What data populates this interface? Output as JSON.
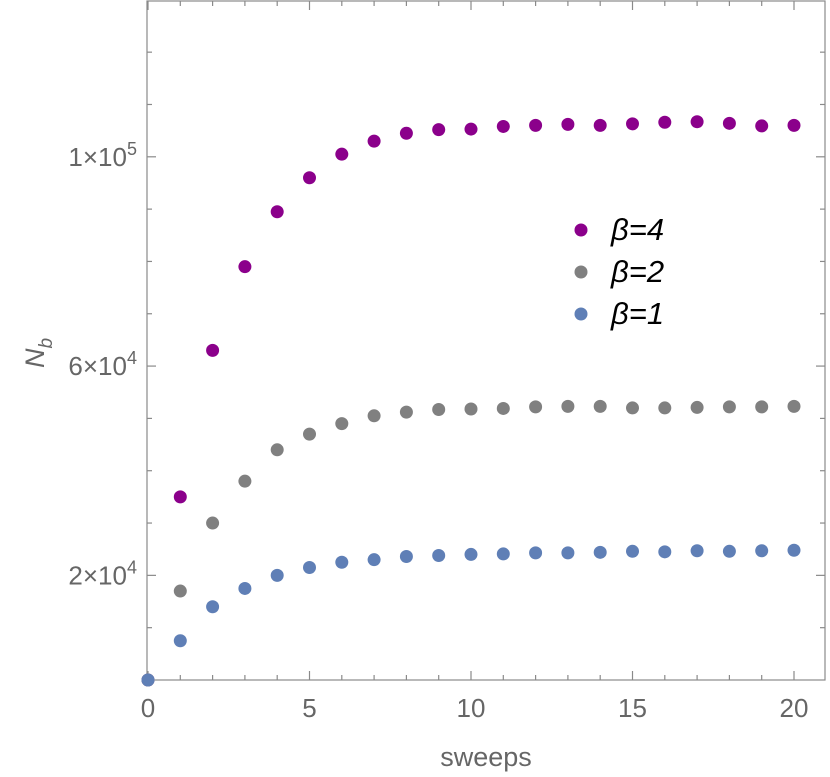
{
  "chart_data": {
    "type": "scatter",
    "xlabel": "sweeps",
    "ylabel": "N_b",
    "ylabel_main": "N",
    "ylabel_sub": "b",
    "xlim": [
      0,
      20.8
    ],
    "ylim": [
      0,
      130000
    ],
    "x_ticks": [
      0,
      5,
      10,
      15,
      20
    ],
    "x_tick_labels": [
      "0",
      "5",
      "10",
      "15",
      "20"
    ],
    "y_ticks": [
      20000,
      60000,
      100000
    ],
    "y_tick_labels": [
      {
        "mantissa": "2×10",
        "exp": "4"
      },
      {
        "mantissa": "6×10",
        "exp": "4"
      },
      {
        "mantissa": "1×10",
        "exp": "5"
      }
    ],
    "grid": false,
    "legend_position": "center-right",
    "x": [
      0,
      1,
      2,
      3,
      4,
      5,
      6,
      7,
      8,
      9,
      10,
      11,
      12,
      13,
      14,
      15,
      16,
      17,
      18,
      19,
      20
    ],
    "series": [
      {
        "name": "β=4",
        "color": "#8b008b",
        "values": [
          0,
          35000,
          63000,
          79000,
          89500,
          96000,
          100500,
          103000,
          104500,
          105200,
          105300,
          105800,
          106000,
          106200,
          106000,
          106300,
          106600,
          106700,
          106400,
          105900,
          106000
        ]
      },
      {
        "name": "β=2",
        "color": "#808080",
        "values": [
          0,
          17000,
          30000,
          38000,
          44000,
          47000,
          49000,
          50500,
          51200,
          51700,
          51800,
          51900,
          52200,
          52300,
          52300,
          52000,
          52000,
          52100,
          52200,
          52200,
          52300
        ]
      },
      {
        "name": "β=1",
        "color": "#5f7fb6",
        "values": [
          0,
          7500,
          14000,
          17500,
          20000,
          21500,
          22500,
          23000,
          23600,
          23800,
          24000,
          24100,
          24300,
          24300,
          24400,
          24600,
          24500,
          24700,
          24600,
          24700,
          24800
        ]
      }
    ]
  }
}
